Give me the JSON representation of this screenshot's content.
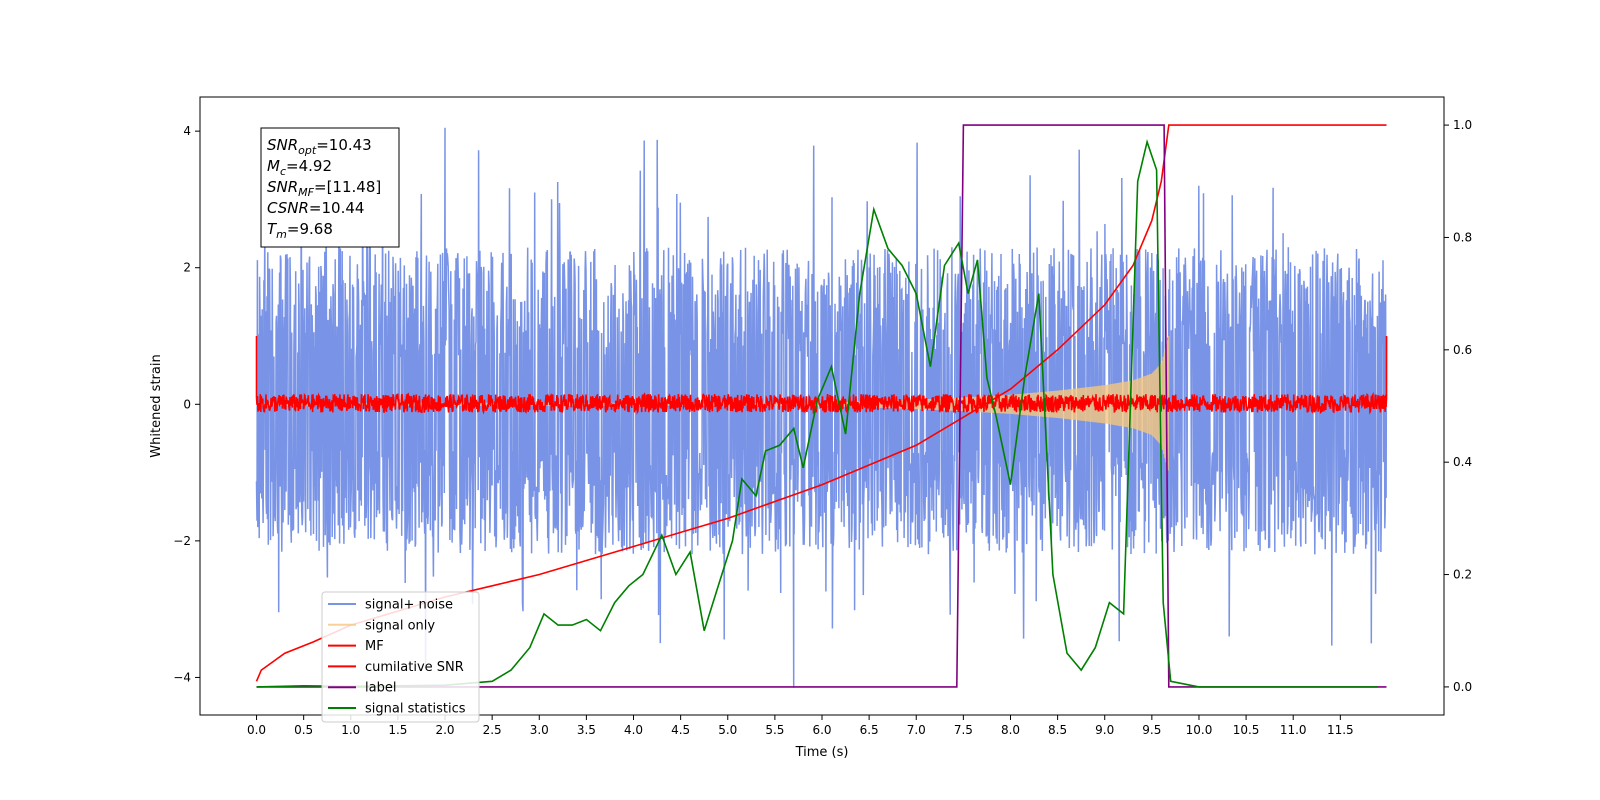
{
  "chart_data": {
    "type": "line",
    "title": "",
    "xlabel": "Time (s)",
    "ylabel": "Whitened strain",
    "xlim": [
      -0.6,
      12.6
    ],
    "ylim": [
      -4.55,
      4.5
    ],
    "y2lim": [
      -0.05,
      1.05
    ],
    "x_ticks": [
      0.0,
      0.5,
      1.0,
      1.5,
      2.0,
      2.5,
      3.0,
      3.5,
      4.0,
      4.5,
      5.0,
      5.5,
      6.0,
      6.5,
      7.0,
      7.5,
      8.0,
      8.5,
      9.0,
      9.5,
      10.0,
      10.5,
      11.0,
      11.5
    ],
    "x_tick_labels": [
      "0.0",
      "0.5",
      "1.0",
      "1.5",
      "2.0",
      "2.5",
      "3.0",
      "3.5",
      "4.0",
      "4.5",
      "5.0",
      "5.5",
      "6.0",
      "6.5",
      "7.0",
      "7.5",
      "8.0",
      "8.5",
      "9.0",
      "9.5",
      "10.0",
      "10.5",
      "11.0",
      "11.5"
    ],
    "y_ticks": [
      -4,
      -2,
      0,
      2,
      4
    ],
    "y_tick_labels": [
      "−4",
      "−2",
      "0",
      "2",
      "4"
    ],
    "y2_ticks": [
      0.0,
      0.2,
      0.4,
      0.6,
      0.8,
      1.0
    ],
    "y2_tick_labels": [
      "0.0",
      "0.2",
      "0.4",
      "0.6",
      "0.8",
      "1.0"
    ],
    "grid": false,
    "legend_position": "lower-left",
    "annotation": {
      "lines": [
        {
          "main": "SNR",
          "sub": "opt",
          "value": "=10.43"
        },
        {
          "main": "M",
          "sub": "c",
          "value": "=4.92"
        },
        {
          "main": "SNR",
          "sub": "MF",
          "value": "=[11.48]"
        },
        {
          "main": "CSNR",
          "sub": "",
          "value": "=10.44"
        },
        {
          "main": "T",
          "sub": "m",
          "value": "=9.68"
        }
      ]
    },
    "series": [
      {
        "name": "signal+ noise",
        "color": "#7994e6",
        "axis": "left",
        "kind": "noise",
        "x_range": [
          0.0,
          11.99
        ],
        "band_low": -2.2,
        "band_high": 2.3,
        "peak": 4.05,
        "trough": -4.15
      },
      {
        "name": "signal only",
        "color": "#f5c77e",
        "axis": "left",
        "kind": "chirp",
        "x_range": [
          0.0,
          9.68
        ],
        "envelope": [
          [
            6.0,
            0.02
          ],
          [
            7.0,
            0.07
          ],
          [
            7.5,
            0.1
          ],
          [
            8.0,
            0.14
          ],
          [
            8.5,
            0.2
          ],
          [
            9.0,
            0.28
          ],
          [
            9.3,
            0.35
          ],
          [
            9.5,
            0.45
          ],
          [
            9.6,
            0.6
          ],
          [
            9.68,
            1.0
          ]
        ]
      },
      {
        "name": "MF",
        "color": "#ff0000",
        "axis": "left",
        "kind": "noise",
        "x_range": [
          0.0,
          11.99
        ],
        "band_low": -0.12,
        "band_high": 0.15,
        "edge_value": 1.0
      },
      {
        "name": "cumilative SNR",
        "color": "#ff0000",
        "axis": "right",
        "kind": "line",
        "points": [
          [
            0.0,
            0.01
          ],
          [
            0.05,
            0.03
          ],
          [
            0.3,
            0.06
          ],
          [
            0.6,
            0.08
          ],
          [
            1.0,
            0.11
          ],
          [
            1.5,
            0.135
          ],
          [
            2.0,
            0.16
          ],
          [
            2.5,
            0.18
          ],
          [
            3.0,
            0.2
          ],
          [
            3.5,
            0.225
          ],
          [
            4.0,
            0.25
          ],
          [
            4.5,
            0.275
          ],
          [
            5.0,
            0.3
          ],
          [
            5.5,
            0.33
          ],
          [
            6.0,
            0.36
          ],
          [
            6.5,
            0.395
          ],
          [
            7.0,
            0.43
          ],
          [
            7.5,
            0.48
          ],
          [
            8.0,
            0.53
          ],
          [
            8.5,
            0.6
          ],
          [
            9.0,
            0.68
          ],
          [
            9.3,
            0.75
          ],
          [
            9.5,
            0.83
          ],
          [
            9.6,
            0.9
          ],
          [
            9.68,
            1.0
          ],
          [
            11.99,
            1.0
          ]
        ]
      },
      {
        "name": "label",
        "color": "#800080",
        "axis": "right",
        "kind": "line",
        "points": [
          [
            0.0,
            0.0
          ],
          [
            7.43,
            0.0
          ],
          [
            7.5,
            1.0
          ],
          [
            9.63,
            1.0
          ],
          [
            9.68,
            0.0
          ],
          [
            11.99,
            0.0
          ]
        ]
      },
      {
        "name": "signal statistics",
        "color": "#008000",
        "axis": "right",
        "kind": "line",
        "points": [
          [
            0.0,
            0.0
          ],
          [
            0.5,
            0.002
          ],
          [
            1.0,
            0.001
          ],
          [
            1.5,
            0.002
          ],
          [
            2.0,
            0.003
          ],
          [
            2.5,
            0.01
          ],
          [
            2.7,
            0.03
          ],
          [
            2.9,
            0.07
          ],
          [
            3.05,
            0.13
          ],
          [
            3.2,
            0.11
          ],
          [
            3.35,
            0.11
          ],
          [
            3.5,
            0.12
          ],
          [
            3.65,
            0.1
          ],
          [
            3.8,
            0.15
          ],
          [
            3.95,
            0.18
          ],
          [
            4.1,
            0.2
          ],
          [
            4.3,
            0.27
          ],
          [
            4.45,
            0.2
          ],
          [
            4.6,
            0.24
          ],
          [
            4.75,
            0.1
          ],
          [
            4.9,
            0.18
          ],
          [
            5.05,
            0.26
          ],
          [
            5.15,
            0.37
          ],
          [
            5.3,
            0.34
          ],
          [
            5.4,
            0.42
          ],
          [
            5.55,
            0.43
          ],
          [
            5.7,
            0.46
          ],
          [
            5.8,
            0.39
          ],
          [
            5.95,
            0.51
          ],
          [
            6.1,
            0.57
          ],
          [
            6.25,
            0.45
          ],
          [
            6.4,
            0.7
          ],
          [
            6.55,
            0.85
          ],
          [
            6.7,
            0.78
          ],
          [
            6.85,
            0.75
          ],
          [
            7.0,
            0.7
          ],
          [
            7.15,
            0.57
          ],
          [
            7.3,
            0.75
          ],
          [
            7.45,
            0.79
          ],
          [
            7.55,
            0.7
          ],
          [
            7.65,
            0.76
          ],
          [
            7.75,
            0.55
          ],
          [
            7.85,
            0.48
          ],
          [
            8.0,
            0.36
          ],
          [
            8.15,
            0.55
          ],
          [
            8.3,
            0.7
          ],
          [
            8.45,
            0.2
          ],
          [
            8.6,
            0.06
          ],
          [
            8.75,
            0.03
          ],
          [
            8.9,
            0.07
          ],
          [
            9.05,
            0.15
          ],
          [
            9.2,
            0.13
          ],
          [
            9.35,
            0.9
          ],
          [
            9.45,
            0.97
          ],
          [
            9.55,
            0.92
          ],
          [
            9.62,
            0.15
          ],
          [
            9.7,
            0.01
          ],
          [
            10.0,
            0.0
          ],
          [
            11.9,
            0.0
          ]
        ]
      }
    ]
  }
}
